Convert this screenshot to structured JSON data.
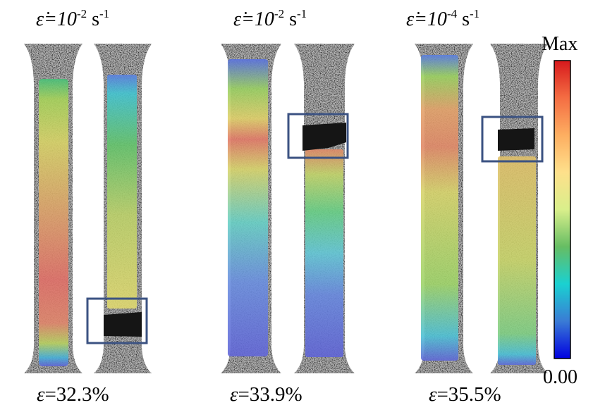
{
  "panels": [
    {
      "rate_prefix": "ε̇=10",
      "rate_exp": "-2",
      "rate_unit": " s",
      "rate_unit_exp": "-1",
      "strain_symbol": "ε",
      "strain_value": "=32.3%"
    },
    {
      "rate_prefix": "ε̇=10",
      "rate_exp": "-2",
      "rate_unit": " s",
      "rate_unit_exp": "-1",
      "strain_symbol": "ε",
      "strain_value": "=33.9%"
    },
    {
      "rate_prefix": "ε̇=10",
      "rate_exp": "-4",
      "rate_unit": " s",
      "rate_unit_exp": "-1",
      "strain_symbol": "ε",
      "strain_value": "=35.5%"
    }
  ],
  "colorbar": {
    "max_label": "Max",
    "min_label": "0.00",
    "colors": [
      "#d7191c",
      "#f46d43",
      "#fdae61",
      "#fee08b",
      "#d9ef8b",
      "#66bd63",
      "#1ad1d1",
      "#3a7bd5",
      "#0000e0"
    ]
  },
  "colors": {
    "highlight_box": "#3b5282",
    "specimen_gray": "#b9b9b9",
    "crack": "#151515"
  }
}
